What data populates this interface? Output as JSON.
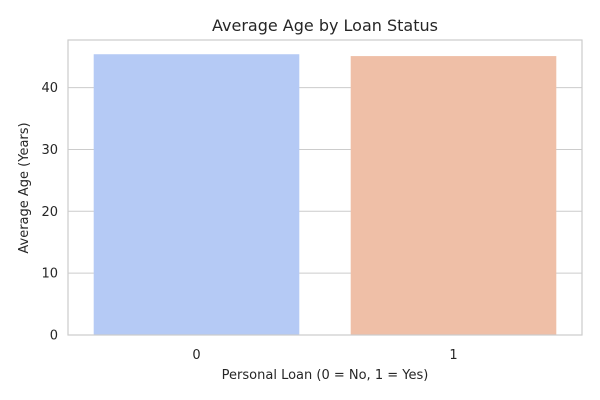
{
  "chart_data": {
    "type": "bar",
    "title": "Average Age by Loan Status",
    "xlabel": "Personal Loan (0 = No, 1 = Yes)",
    "ylabel": "Average Age (Years)",
    "categories": [
      "0",
      "1"
    ],
    "values": [
      45.4,
      45.1
    ],
    "colors": [
      "#b5caf5",
      "#efbfa7"
    ],
    "ylim": [
      0,
      47.7
    ],
    "yticks": [
      0,
      10,
      20,
      30,
      40
    ],
    "grid": "horizontal"
  }
}
